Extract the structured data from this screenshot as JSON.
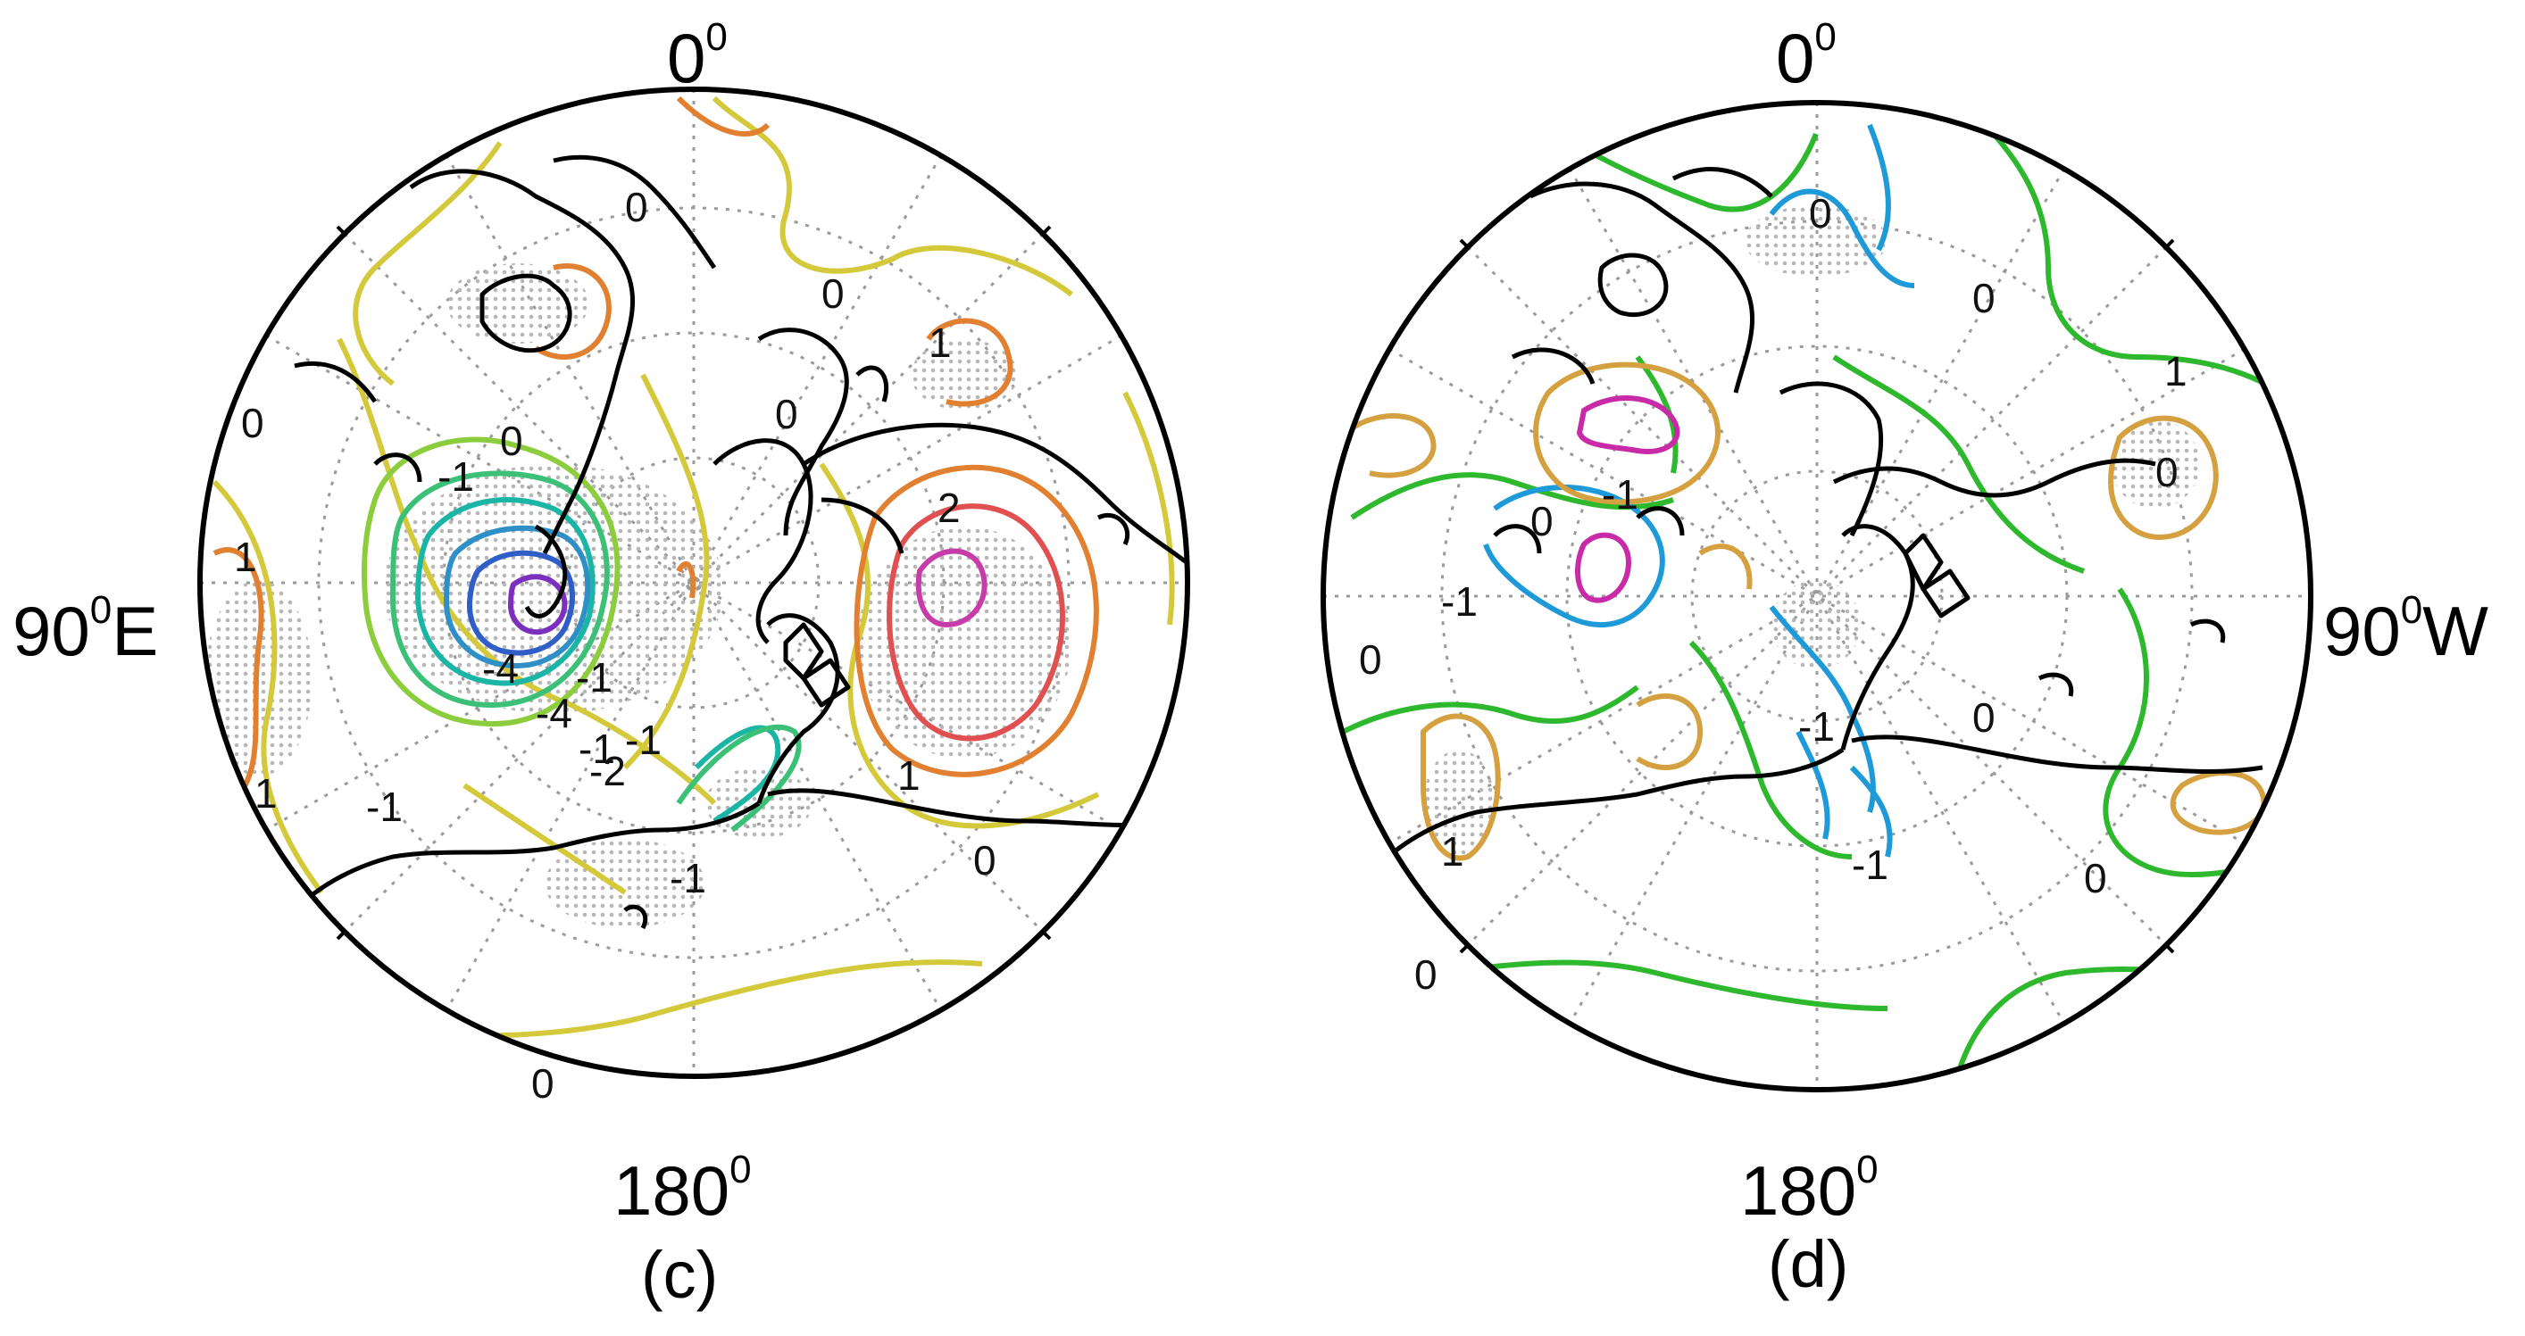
{
  "panels": [
    {
      "id": "c",
      "caption": "(c)",
      "lon_labels": {
        "top": "0",
        "bottom": "180",
        "side": "90",
        "side_suffix": "E",
        "degree": "0"
      },
      "contour_labels": [
        "0",
        "0",
        "0",
        "0",
        "0",
        "0",
        "1",
        "1",
        "1",
        "1",
        "2",
        "-1",
        "-1",
        "-1",
        "-1",
        "-1",
        "-1",
        "-2",
        "-4",
        "-4",
        "0"
      ]
    },
    {
      "id": "d",
      "caption": "(d)",
      "lon_labels": {
        "top": "0",
        "bottom": "180",
        "side": "90",
        "side_suffix": "W",
        "degree": "0"
      },
      "contour_labels": [
        "0",
        "0",
        "0",
        "0",
        "0",
        "0",
        "1",
        "1",
        "-1",
        "-1",
        "-1",
        "-1",
        "0",
        "0"
      ]
    }
  ],
  "colors": {
    "strong_negative": "#7b2fbe",
    "moderate_negative": "#2f5ec7",
    "weak_negative": "#1bb5a6",
    "zero_line_c": "#d4c93a",
    "weak_positive": "#e08030",
    "strong_positive": "#c73ca8",
    "zero_line_d": "#2db82d",
    "negative_d": "#1e9ad8",
    "positive_d": "#d4a040",
    "strong_positive_d": "#c82aa8",
    "coast": "#000000",
    "grid": "#9a9a9a"
  }
}
